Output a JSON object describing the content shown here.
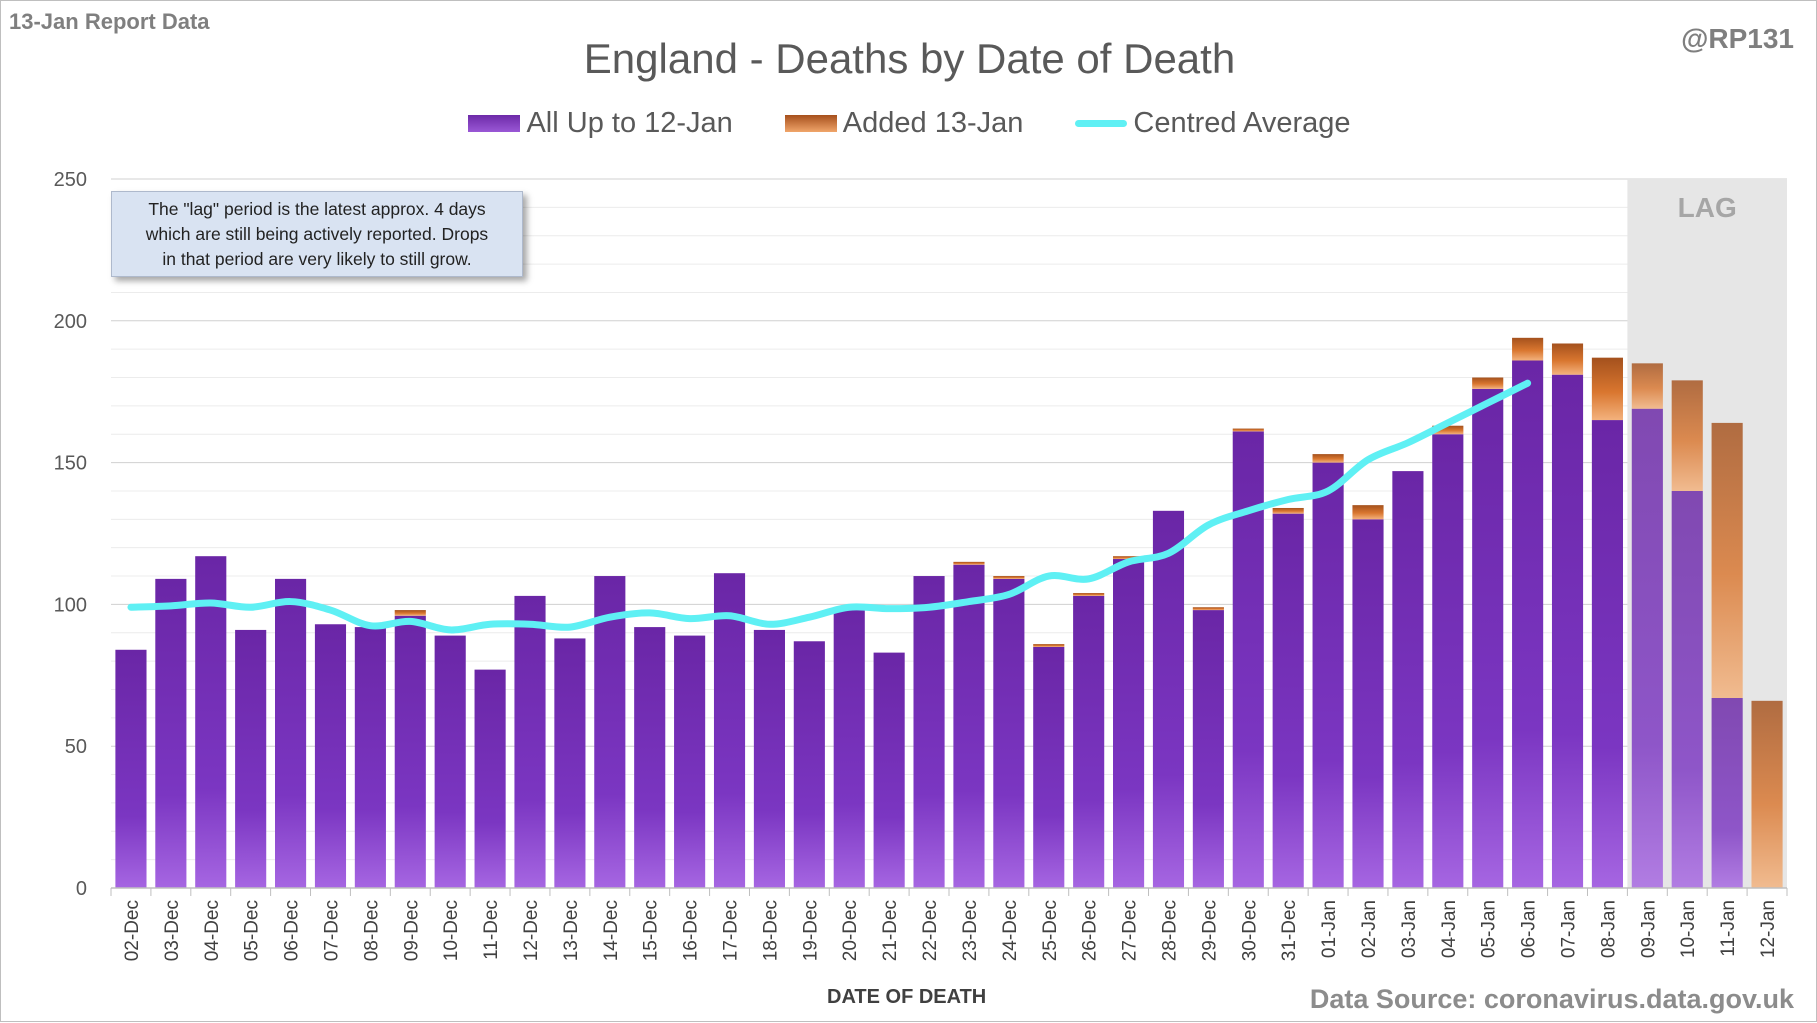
{
  "header": {
    "report_tag": "13-Jan Report Data",
    "handle": "@RP131",
    "source": "Data Source: coronavirus.data.gov.uk",
    "note_lines": [
      "The \"lag\" period is the latest approx. 4 days",
      "which are still being actively reported.  Drops",
      "in that period are very likely to still grow."
    ],
    "lag_label": "LAG"
  },
  "chart_data": {
    "type": "bar",
    "stacked": true,
    "title": "England - Deaths by Date of Death",
    "xlabel": "DATE OF DEATH",
    "ylabel": "",
    "ylim": [
      0,
      250
    ],
    "yticks": [
      0,
      50,
      100,
      150,
      200,
      250
    ],
    "grid": true,
    "legend_position": "top",
    "lag_categories": [
      "09-Jan",
      "10-Jan",
      "11-Jan",
      "12-Jan"
    ],
    "categories": [
      "02-Dec",
      "03-Dec",
      "04-Dec",
      "05-Dec",
      "06-Dec",
      "07-Dec",
      "08-Dec",
      "09-Dec",
      "10-Dec",
      "11-Dec",
      "12-Dec",
      "13-Dec",
      "14-Dec",
      "15-Dec",
      "16-Dec",
      "17-Dec",
      "18-Dec",
      "19-Dec",
      "20-Dec",
      "21-Dec",
      "22-Dec",
      "23-Dec",
      "24-Dec",
      "25-Dec",
      "26-Dec",
      "27-Dec",
      "28-Dec",
      "29-Dec",
      "30-Dec",
      "31-Dec",
      "01-Jan",
      "02-Jan",
      "03-Jan",
      "04-Jan",
      "05-Jan",
      "06-Jan",
      "07-Jan",
      "08-Jan",
      "09-Jan",
      "10-Jan",
      "11-Jan",
      "12-Jan"
    ],
    "series": [
      {
        "name": "All Up to 12-Jan",
        "kind": "bar",
        "color": "#7a35c0",
        "values": [
          84,
          109,
          117,
          91,
          109,
          93,
          92,
          96,
          89,
          77,
          103,
          88,
          110,
          92,
          89,
          111,
          91,
          87,
          99,
          83,
          110,
          114,
          109,
          85,
          103,
          116,
          133,
          98,
          161,
          132,
          150,
          130,
          147,
          160,
          176,
          186,
          181,
          165,
          169,
          140,
          67,
          0
        ]
      },
      {
        "name": "Added 13-Jan",
        "kind": "bar",
        "color": "#d9762f",
        "values": [
          0,
          0,
          0,
          0,
          0,
          0,
          0,
          2,
          0,
          0,
          0,
          0,
          0,
          0,
          0,
          0,
          0,
          0,
          0,
          0,
          0,
          1,
          1,
          1,
          1,
          1,
          0,
          1,
          1,
          2,
          3,
          5,
          0,
          3,
          4,
          8,
          11,
          22,
          16,
          39,
          97,
          66
        ]
      },
      {
        "name": "Centred Average",
        "kind": "line",
        "color": "#5ff0f4",
        "values": [
          99,
          99.5,
          100.5,
          99,
          101,
          98,
          92.5,
          94,
          91,
          93,
          93,
          92,
          95.5,
          97,
          95,
          96,
          93,
          95.5,
          99,
          98.5,
          99,
          101,
          103.5,
          110,
          109,
          115,
          118,
          128,
          133,
          137,
          140,
          151,
          157,
          164,
          171,
          178,
          null,
          null,
          null,
          null,
          null,
          null
        ]
      }
    ]
  }
}
